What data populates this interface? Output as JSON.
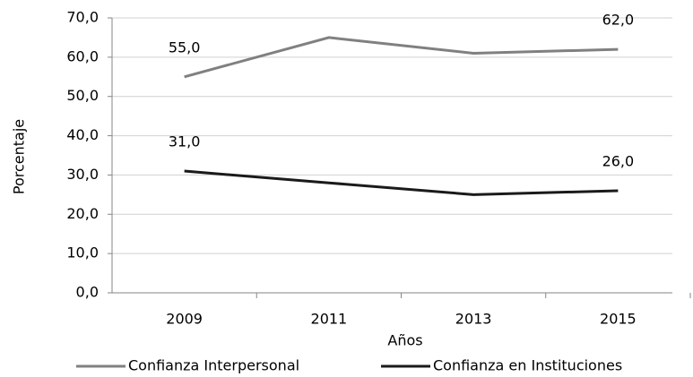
{
  "chart_data": {
    "type": "line",
    "categories": [
      "2009",
      "2011",
      "2013",
      "2015"
    ],
    "series": [
      {
        "name": "Confianza Interpersonal",
        "color": "#808080",
        "values": [
          55,
          65,
          61,
          62
        ],
        "value_labels": [
          "55,0",
          null,
          null,
          "62,0"
        ]
      },
      {
        "name": "Confianza en Instituciones",
        "color": "#1a1a1a",
        "values": [
          31,
          28,
          25,
          26
        ],
        "value_labels": [
          "31,0",
          null,
          null,
          "26,0"
        ]
      }
    ],
    "ylabel": "Porcentaje",
    "xlabel": "Años",
    "ylim": [
      0,
      70
    ],
    "yticks": [
      {
        "value": 0,
        "label": "0,0"
      },
      {
        "value": 10,
        "label": "10,0"
      },
      {
        "value": 20,
        "label": "20,0"
      },
      {
        "value": 30,
        "label": "30,0"
      },
      {
        "value": 40,
        "label": "40,0"
      },
      {
        "value": 50,
        "label": "50,0"
      },
      {
        "value": 60,
        "label": "60,0"
      },
      {
        "value": 70,
        "label": "70,0"
      }
    ],
    "grid": true,
    "legend": "bottom"
  }
}
